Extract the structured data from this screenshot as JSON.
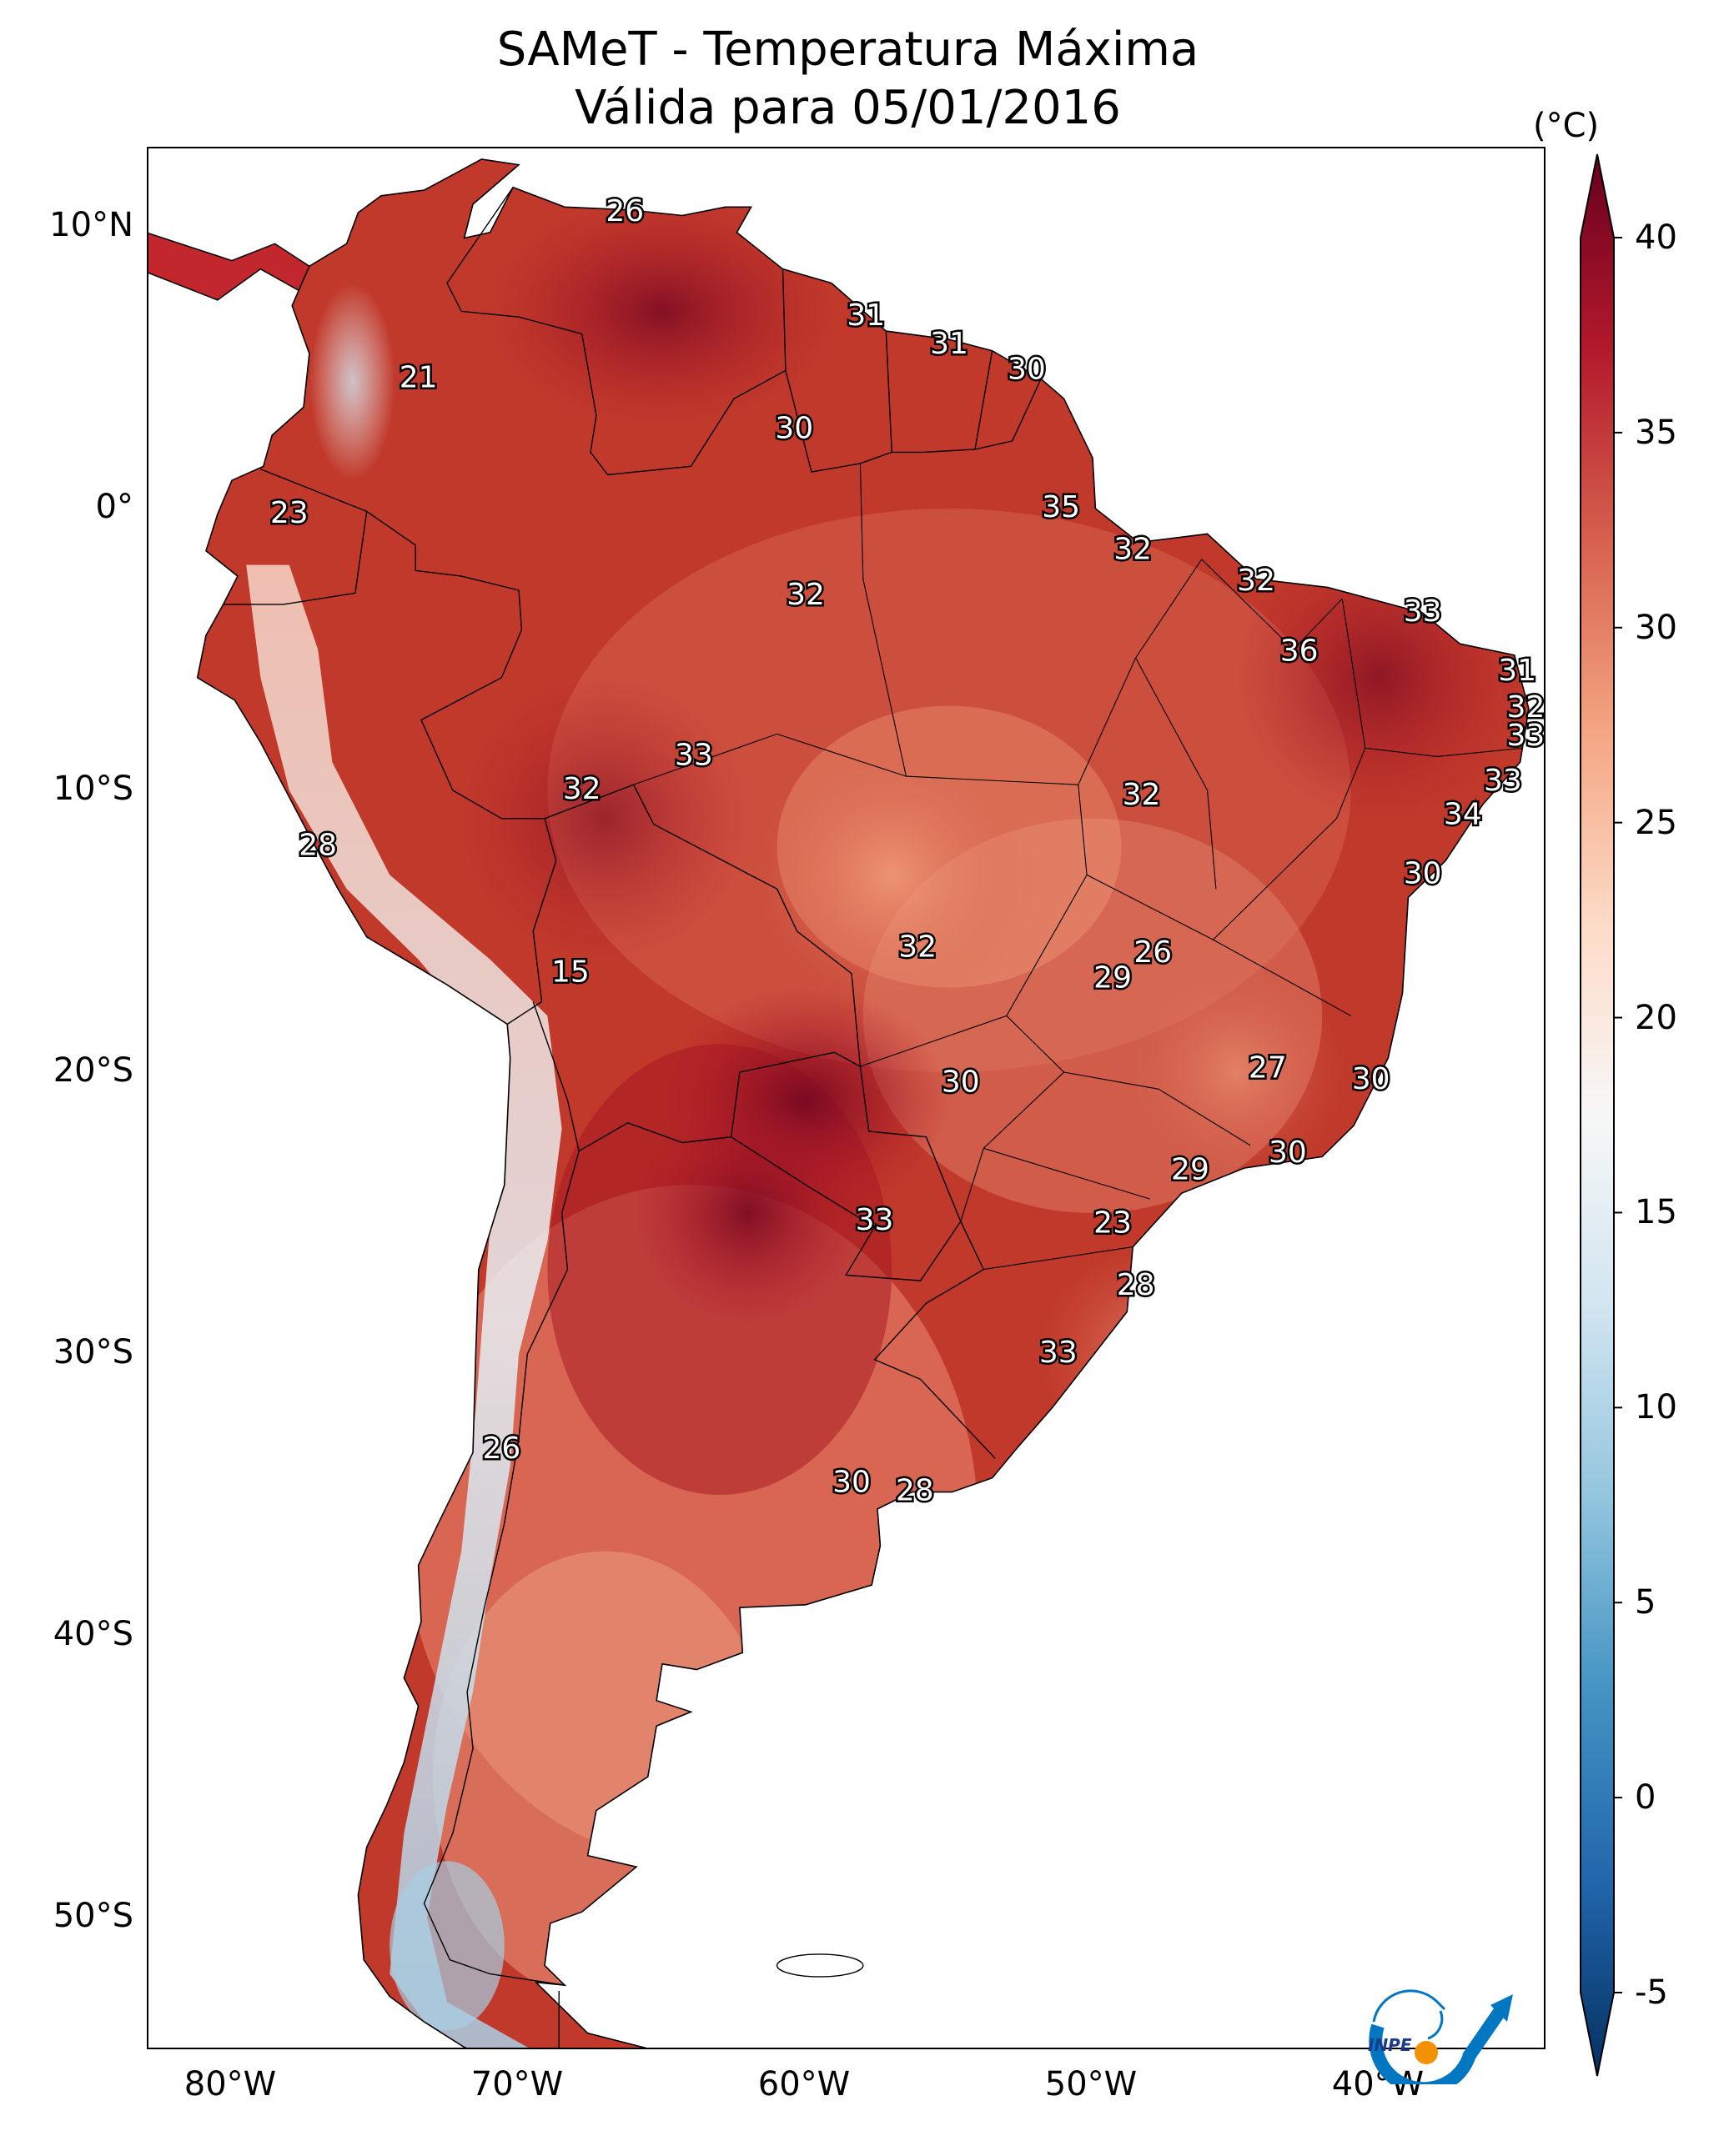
{
  "title": {
    "line1": "SAMeT - Temperatura Máxima",
    "line2": "Válida para 05/01/2016"
  },
  "axes": {
    "lat_ticks": [
      {
        "label": "10°N",
        "lat": 10
      },
      {
        "label": "0°",
        "lat": 0
      },
      {
        "label": "10°S",
        "lat": -10
      },
      {
        "label": "20°S",
        "lat": -20
      },
      {
        "label": "30°S",
        "lat": -30
      },
      {
        "label": "40°S",
        "lat": -40
      },
      {
        "label": "50°S",
        "lat": -50
      }
    ],
    "lon_ticks": [
      {
        "label": "80°W",
        "lon": -80
      },
      {
        "label": "70°W",
        "lon": -70
      },
      {
        "label": "60°W",
        "lon": -60
      },
      {
        "label": "50°W",
        "lon": -50
      },
      {
        "label": "40°W",
        "lon": -40
      }
    ],
    "lon_range": [
      -83,
      -34
    ],
    "lat_range": [
      -56.5,
      13
    ]
  },
  "colorbar": {
    "unit": "(°C)",
    "min": -5,
    "max": 40,
    "ticks": [
      "-5",
      "0",
      "5",
      "10",
      "15",
      "20",
      "25",
      "30",
      "35",
      "40"
    ],
    "colors": [
      "#053061",
      "#2166ac",
      "#4393c3",
      "#92c5de",
      "#d1e5f0",
      "#f7f7f7",
      "#fddbc7",
      "#f4a582",
      "#d6604d",
      "#b2182b",
      "#67001f"
    ]
  },
  "city_labels": [
    {
      "text": "26",
      "lon": -66.3,
      "lat": 10.5
    },
    {
      "text": "31",
      "lon": -57.9,
      "lat": 6.8
    },
    {
      "text": "31",
      "lon": -55.0,
      "lat": 5.8
    },
    {
      "text": "30",
      "lon": -52.3,
      "lat": 4.9
    },
    {
      "text": "21",
      "lon": -73.5,
      "lat": 4.6
    },
    {
      "text": "30",
      "lon": -60.4,
      "lat": 2.8
    },
    {
      "text": "35",
      "lon": -51.1,
      "lat": 0.0
    },
    {
      "text": "23",
      "lon": -78.0,
      "lat": -0.2
    },
    {
      "text": "32",
      "lon": -48.6,
      "lat": -1.5
    },
    {
      "text": "32",
      "lon": -44.3,
      "lat": -2.6
    },
    {
      "text": "32",
      "lon": -60.0,
      "lat": -3.1
    },
    {
      "text": "33",
      "lon": -38.5,
      "lat": -3.7
    },
    {
      "text": "36",
      "lon": -42.8,
      "lat": -5.1
    },
    {
      "text": "31",
      "lon": -35.2,
      "lat": -5.8
    },
    {
      "text": "32",
      "lon": -34.9,
      "lat": -7.1
    },
    {
      "text": "33",
      "lon": -34.9,
      "lat": -8.1
    },
    {
      "text": "33",
      "lon": -63.9,
      "lat": -8.8
    },
    {
      "text": "32",
      "lon": -67.8,
      "lat": -10.0
    },
    {
      "text": "32",
      "lon": -48.3,
      "lat": -10.2
    },
    {
      "text": "33",
      "lon": -35.7,
      "lat": -9.7
    },
    {
      "text": "34",
      "lon": -37.1,
      "lat": -10.9
    },
    {
      "text": "28",
      "lon": -77.0,
      "lat": -12.0
    },
    {
      "text": "30",
      "lon": -38.5,
      "lat": -13.0
    },
    {
      "text": "32",
      "lon": -56.1,
      "lat": -15.6
    },
    {
      "text": "26",
      "lon": -47.9,
      "lat": -15.8
    },
    {
      "text": "29",
      "lon": -49.3,
      "lat": -16.7
    },
    {
      "text": "15",
      "lon": -68.2,
      "lat": -16.5
    },
    {
      "text": "27",
      "lon": -43.9,
      "lat": -19.9
    },
    {
      "text": "30",
      "lon": -40.3,
      "lat": -20.3
    },
    {
      "text": "30",
      "lon": -54.6,
      "lat": -20.4
    },
    {
      "text": "30",
      "lon": -43.2,
      "lat": -22.9
    },
    {
      "text": "29",
      "lon": -46.6,
      "lat": -23.5
    },
    {
      "text": "33",
      "lon": -57.6,
      "lat": -25.3
    },
    {
      "text": "23",
      "lon": -49.3,
      "lat": -25.4
    },
    {
      "text": "28",
      "lon": -48.5,
      "lat": -27.6
    },
    {
      "text": "33",
      "lon": -51.2,
      "lat": -30.0
    },
    {
      "text": "26",
      "lon": -70.6,
      "lat": -33.4
    },
    {
      "text": "30",
      "lon": -58.4,
      "lat": -34.6
    },
    {
      "text": "28",
      "lon": -56.2,
      "lat": -34.9
    }
  ],
  "logo": {
    "text": "INPE",
    "icon": "inpe-logo-icon",
    "accent": "#0077c0",
    "dot": "#f39200"
  }
}
